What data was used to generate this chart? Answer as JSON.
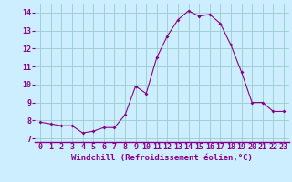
{
  "hours": [
    0,
    1,
    2,
    3,
    4,
    5,
    6,
    7,
    8,
    9,
    10,
    11,
    12,
    13,
    14,
    15,
    16,
    17,
    18,
    19,
    20,
    21,
    22,
    23
  ],
  "values": [
    7.9,
    7.8,
    7.7,
    7.7,
    7.3,
    7.4,
    7.6,
    7.6,
    8.3,
    9.9,
    9.5,
    11.5,
    12.7,
    13.6,
    14.1,
    13.8,
    13.9,
    13.4,
    12.2,
    10.7,
    9.0,
    9.0,
    8.5,
    8.5
  ],
  "line_color": "#880088",
  "marker": "D",
  "marker_size": 2.0,
  "bg_color": "#cceeff",
  "grid_color": "#99cccc",
  "xlabel": "Windchill (Refroidissement éolien,°C)",
  "xlabel_color": "#880088",
  "xlabel_fontsize": 6.5,
  "tick_color": "#880088",
  "tick_fontsize": 6,
  "ylim": [
    6.8,
    14.5
  ],
  "yticks": [
    7,
    8,
    9,
    10,
    11,
    12,
    13,
    14
  ],
  "xlim": [
    -0.5,
    23.5
  ],
  "xticks": [
    0,
    1,
    2,
    3,
    4,
    5,
    6,
    7,
    8,
    9,
    10,
    11,
    12,
    13,
    14,
    15,
    16,
    17,
    18,
    19,
    20,
    21,
    22,
    23
  ],
  "axis_line_color": "#880088"
}
